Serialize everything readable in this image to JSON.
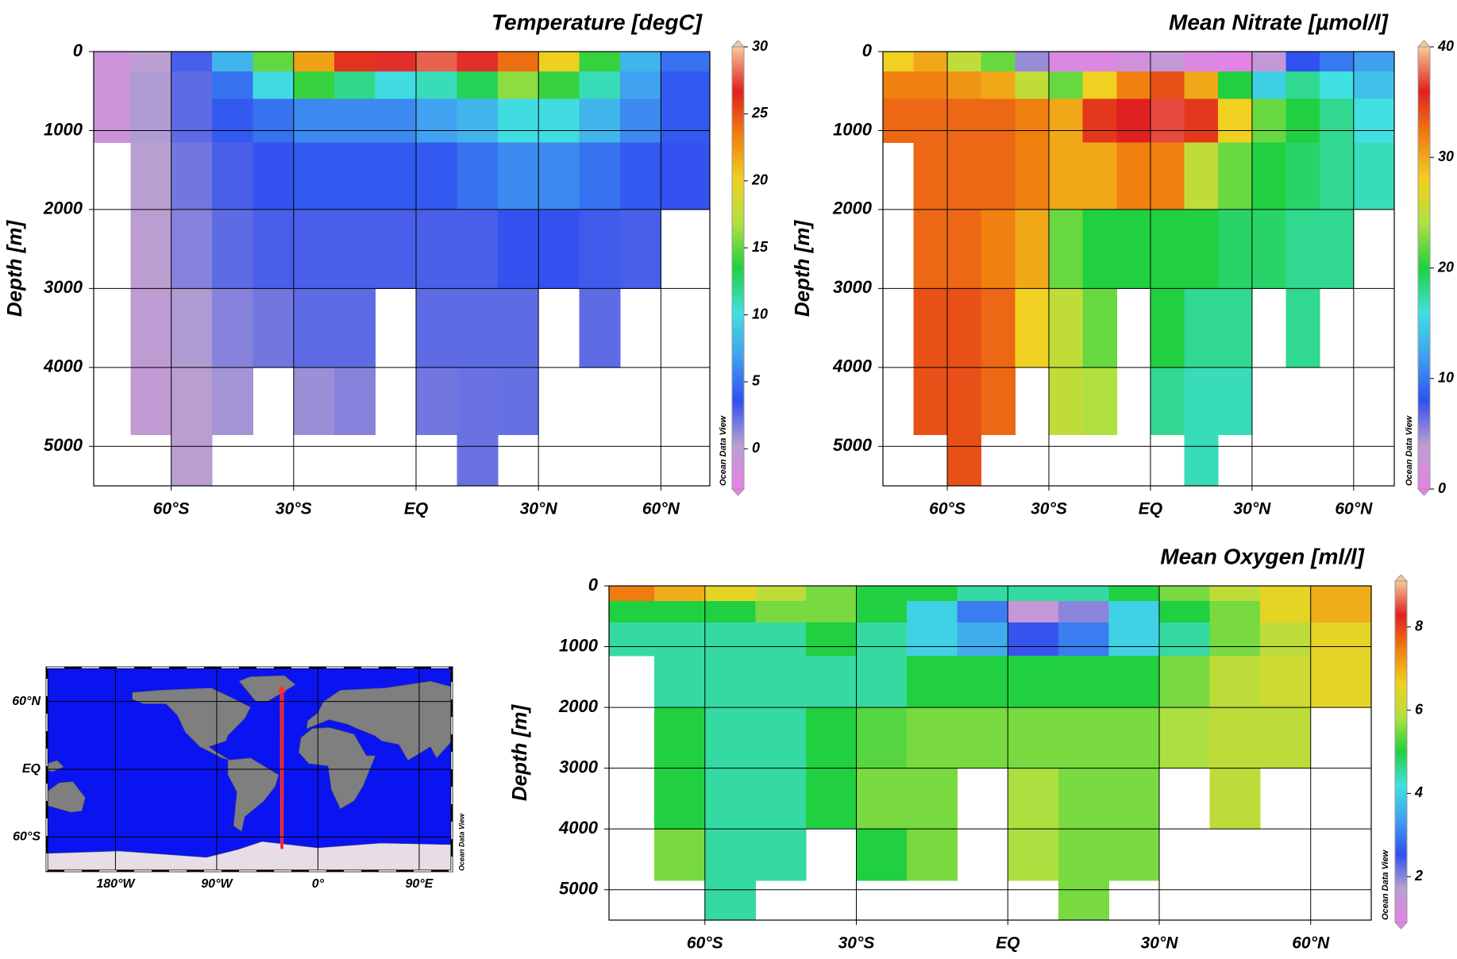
{
  "chart_data": [
    {
      "type": "section",
      "title": "Temperature [degC]",
      "ylabel": "Depth [m]",
      "watermark": "Ocean Data View",
      "x": [
        -75,
        -65,
        -55,
        -45,
        -35,
        -25,
        -15,
        -5,
        5,
        15,
        25,
        35,
        45,
        55,
        65
      ],
      "y": [
        100,
        400,
        800,
        1500,
        2500,
        3500,
        4500,
        5200
      ],
      "values": [
        [
          -1,
          0,
          3,
          8,
          15,
          22,
          26,
          27,
          28,
          27,
          24,
          20,
          14,
          8,
          5
        ],
        [
          -1,
          0.5,
          2.5,
          5,
          10,
          14,
          12,
          10,
          11,
          13,
          16,
          14,
          11,
          7,
          4
        ],
        [
          -1,
          0.5,
          2.5,
          4,
          5,
          6,
          6,
          6,
          7,
          8,
          10,
          10,
          8,
          6,
          4
        ],
        [
          null,
          0.3,
          2,
          3,
          3.5,
          4,
          4,
          4,
          4,
          5,
          6,
          6,
          5,
          4,
          3.5
        ],
        [
          null,
          0,
          1.5,
          2.5,
          3,
          3,
          3,
          3,
          3,
          3,
          3.5,
          3.5,
          3.2,
          3,
          null
        ],
        [
          null,
          -0.2,
          0.5,
          1.5,
          2,
          2.5,
          2.5,
          null,
          2.5,
          2.5,
          2.5,
          null,
          2.5,
          null,
          null
        ],
        [
          null,
          -0.3,
          0.2,
          0.8,
          null,
          1,
          1.5,
          null,
          2,
          2.2,
          2.3,
          null,
          null,
          null,
          null
        ],
        [
          null,
          null,
          0,
          null,
          null,
          null,
          null,
          null,
          null,
          2.2,
          null,
          null,
          null,
          null,
          null
        ]
      ],
      "xlim": [
        -79,
        72
      ],
      "ylim": [
        0,
        5500
      ],
      "xticks": [
        {
          "value": -60,
          "label": "60°S"
        },
        {
          "value": -30,
          "label": "30°S"
        },
        {
          "value": 0,
          "label": "EQ"
        },
        {
          "value": 30,
          "label": "30°N"
        },
        {
          "value": 60,
          "label": "60°N"
        }
      ],
      "yticks": [
        0,
        1000,
        2000,
        3000,
        4000,
        5000
      ],
      "grid": true,
      "colorbar": {
        "lim": [
          -3,
          30
        ],
        "ticks": [
          0,
          5,
          10,
          15,
          20,
          25,
          30
        ]
      },
      "colormap": [
        "#e880e8",
        "#b8a0d0",
        "#3050f0",
        "#40a0f0",
        "#40e0e0",
        "#20d040",
        "#b0e040",
        "#f0d020",
        "#f08010",
        "#e02020",
        "#f8c898"
      ]
    },
    {
      "type": "section",
      "title": "Mean Nitrate [µmol/l]",
      "ylabel": "Depth [m]",
      "watermark": "Ocean Data View",
      "x": [
        -75,
        -65,
        -55,
        -45,
        -35,
        -25,
        -15,
        -5,
        5,
        15,
        25,
        35,
        45,
        55,
        65
      ],
      "y": [
        100,
        400,
        800,
        1500,
        2500,
        3500,
        4500,
        5200
      ],
      "values": [
        [
          28,
          30,
          25,
          22,
          5,
          1,
          1,
          2,
          3,
          1,
          0.5,
          3,
          8,
          10,
          12
        ],
        [
          32,
          32,
          31,
          30,
          25,
          22,
          28,
          32,
          34,
          30,
          20,
          15,
          18,
          16,
          14
        ],
        [
          33,
          33,
          33,
          33,
          32,
          30,
          35,
          36,
          37,
          35,
          28,
          22,
          20,
          18,
          16
        ],
        [
          null,
          33,
          33,
          33,
          32,
          30,
          30,
          32,
          32,
          25,
          22,
          20,
          19,
          18,
          17
        ],
        [
          null,
          33,
          33,
          32,
          30,
          22,
          20,
          20,
          20,
          20,
          19,
          19,
          18,
          18,
          null
        ],
        [
          null,
          34,
          34,
          33,
          28,
          25,
          22,
          null,
          20,
          18,
          18,
          null,
          18,
          null,
          null
        ],
        [
          null,
          34,
          34,
          33,
          null,
          25,
          24,
          null,
          18,
          17,
          17,
          null,
          null,
          null,
          null
        ],
        [
          null,
          null,
          34,
          null,
          null,
          null,
          null,
          null,
          null,
          17,
          null,
          null,
          null,
          null,
          null
        ]
      ],
      "xlim": [
        -79,
        72
      ],
      "ylim": [
        0,
        5500
      ],
      "xticks": [
        {
          "value": -60,
          "label": "60°S"
        },
        {
          "value": -30,
          "label": "30°S"
        },
        {
          "value": 0,
          "label": "EQ"
        },
        {
          "value": 30,
          "label": "30°N"
        },
        {
          "value": 60,
          "label": "60°N"
        }
      ],
      "yticks": [
        0,
        1000,
        2000,
        3000,
        4000,
        5000
      ],
      "grid": true,
      "colorbar": {
        "lim": [
          0,
          40
        ],
        "ticks": [
          0,
          10,
          20,
          30,
          40
        ]
      },
      "colormap": [
        "#e880e8",
        "#b8a0d0",
        "#3050f0",
        "#40a0f0",
        "#40e0e0",
        "#20d040",
        "#b0e040",
        "#f0d020",
        "#f08010",
        "#e02020",
        "#f8c898"
      ]
    },
    {
      "type": "section",
      "title": "Mean Oxygen [ml/l]",
      "ylabel": "Depth [m]",
      "watermark": "Ocean Data View",
      "x": [
        -75,
        -65,
        -55,
        -45,
        -35,
        -25,
        -15,
        -5,
        5,
        15,
        25,
        35,
        45,
        55,
        65
      ],
      "y": [
        100,
        400,
        800,
        1500,
        2500,
        3500,
        4500,
        5200
      ],
      "values": [
        [
          7.5,
          7,
          6.5,
          6,
          5.5,
          5,
          5,
          4.5,
          4.5,
          4.5,
          5,
          5.5,
          6,
          6.5,
          7
        ],
        [
          5,
          5,
          5,
          5.5,
          5.5,
          5,
          4,
          3,
          1.5,
          2,
          4,
          5,
          5.5,
          6.5,
          7
        ],
        [
          4.5,
          4.5,
          4.5,
          4.5,
          5,
          4.5,
          4,
          3.5,
          2.5,
          3,
          4,
          4.5,
          5.5,
          6,
          6.5
        ],
        [
          null,
          4.5,
          4.5,
          4.5,
          4.5,
          4.5,
          5,
          5,
          5,
          5,
          5,
          5.5,
          6,
          6.2,
          6.5
        ],
        [
          null,
          5,
          4.5,
          4.5,
          5,
          5.3,
          5.5,
          5.5,
          5.5,
          5.5,
          5.5,
          5.8,
          6,
          6,
          null
        ],
        [
          null,
          5,
          4.5,
          4.5,
          5,
          5.5,
          5.5,
          null,
          5.8,
          5.5,
          5.5,
          null,
          6,
          null,
          null
        ],
        [
          null,
          5.5,
          4.5,
          4.5,
          null,
          5,
          5.5,
          null,
          5.8,
          5.5,
          5.5,
          null,
          null,
          null,
          null
        ],
        [
          null,
          null,
          4.5,
          null,
          null,
          null,
          null,
          null,
          null,
          5.5,
          null,
          null,
          null,
          null,
          null
        ]
      ],
      "xlim": [
        -79,
        72
      ],
      "ylim": [
        0,
        5500
      ],
      "xticks": [
        {
          "value": -60,
          "label": "60°S"
        },
        {
          "value": -30,
          "label": "30°S"
        },
        {
          "value": 0,
          "label": "EQ"
        },
        {
          "value": 30,
          "label": "30°N"
        },
        {
          "value": 60,
          "label": "60°N"
        }
      ],
      "yticks": [
        0,
        1000,
        2000,
        3000,
        4000,
        5000
      ],
      "grid": true,
      "colorbar": {
        "lim": [
          0.9,
          9.1
        ],
        "ticks": [
          2,
          4,
          6,
          8
        ]
      },
      "colormap": [
        "#e880e8",
        "#b8a0d0",
        "#3050f0",
        "#40a0f0",
        "#40e0e0",
        "#20d040",
        "#b0e040",
        "#f0d020",
        "#f08010",
        "#e02020",
        "#f8c898"
      ]
    },
    {
      "type": "map",
      "watermark": "Ocean Data View",
      "xlim": [
        -241,
        119
      ],
      "ylim": [
        -90,
        90
      ],
      "xticks": [
        {
          "value": -180,
          "label": "180°W"
        },
        {
          "value": -90,
          "label": "90°W"
        },
        {
          "value": 0,
          "label": "0°"
        },
        {
          "value": 90,
          "label": "90°E"
        }
      ],
      "yticks": [
        {
          "value": 60,
          "label": "60°N"
        },
        {
          "value": 0,
          "label": "EQ"
        },
        {
          "value": -60,
          "label": "60°S"
        }
      ],
      "grid": true
    }
  ]
}
